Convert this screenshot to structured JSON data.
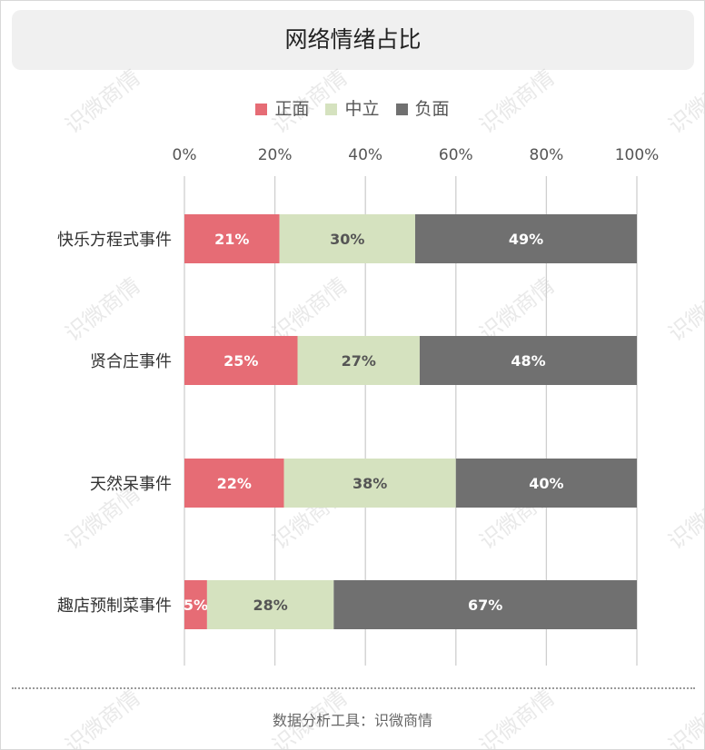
{
  "chart_data": {
    "type": "bar",
    "orientation": "horizontal",
    "stacked": true,
    "title": "网络情绪占比",
    "categories": [
      "快乐方程式事件",
      "贤合庄事件",
      "天然呆事件",
      "趣店预制菜事件"
    ],
    "series": [
      {
        "name": "正面",
        "values": [
          21,
          25,
          22,
          5
        ],
        "labels": [
          "21%",
          "25%",
          "22%",
          "5%"
        ],
        "color": "#e66c75"
      },
      {
        "name": "中立",
        "values": [
          30,
          27,
          38,
          28
        ],
        "labels": [
          "30%",
          "27%",
          "38%",
          "28%"
        ],
        "color": "#d5e2bf"
      },
      {
        "name": "负面",
        "values": [
          49,
          48,
          40,
          67
        ],
        "labels": [
          "49%",
          "48%",
          "40%",
          "67%"
        ],
        "color": "#707070"
      }
    ],
    "xlim": [
      0,
      100
    ],
    "ticks": [
      "0%",
      "20%",
      "40%",
      "60%",
      "80%",
      "100%"
    ],
    "legend_position": "top-center",
    "grid": "vertical"
  },
  "footer": {
    "text": "数据分析工具：识微商情"
  },
  "watermark": {
    "text": "识微商情"
  }
}
